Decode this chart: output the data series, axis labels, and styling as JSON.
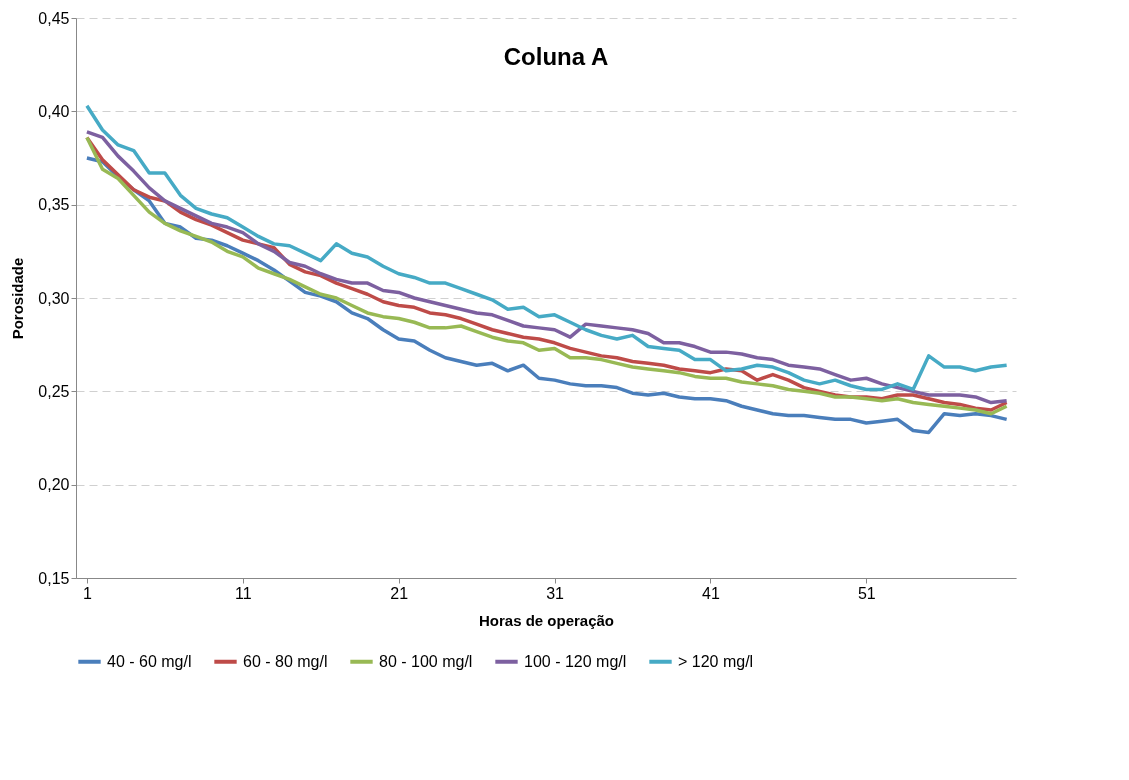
{
  "chart_data": {
    "type": "line",
    "title": "Coluna A",
    "xlabel": "Horas de operação",
    "ylabel": "Porosidade",
    "x": [
      1,
      2,
      3,
      4,
      5,
      6,
      7,
      8,
      9,
      10,
      11,
      12,
      13,
      14,
      15,
      16,
      17,
      18,
      19,
      20,
      21,
      22,
      23,
      24,
      25,
      26,
      27,
      28,
      29,
      30,
      31,
      32,
      33,
      34,
      35,
      36,
      37,
      38,
      39,
      40,
      41,
      42,
      43,
      44,
      45,
      46,
      47,
      48,
      49,
      50,
      51,
      52,
      53,
      54,
      55,
      56,
      57,
      58,
      59,
      60
    ],
    "xlim": [
      0.3,
      60.6
    ],
    "xticks": [
      1,
      11,
      21,
      31,
      41,
      51
    ],
    "ylim": [
      0.15,
      0.45
    ],
    "yticks": [
      {
        "value": 0.15,
        "label": "0,15"
      },
      {
        "value": 0.2,
        "label": "0,20"
      },
      {
        "value": 0.25,
        "label": "0,25"
      },
      {
        "value": 0.3,
        "label": "0,30"
      },
      {
        "value": 0.35,
        "label": "0,35"
      },
      {
        "value": 0.4,
        "label": "0,40"
      },
      {
        "value": 0.45,
        "label": "0,45"
      }
    ],
    "grid": "y",
    "legend": "bottom",
    "series": [
      {
        "name": "40 - 60 mg/l",
        "color": "#4a7ebb",
        "values": [
          0.375,
          0.373,
          0.365,
          0.358,
          0.352,
          0.34,
          0.338,
          0.332,
          0.331,
          0.328,
          0.324,
          0.32,
          0.315,
          0.309,
          0.303,
          0.301,
          0.298,
          0.292,
          0.289,
          0.283,
          0.278,
          0.277,
          0.272,
          0.268,
          0.266,
          0.264,
          0.265,
          0.261,
          0.264,
          0.257,
          0.256,
          0.254,
          0.253,
          0.253,
          0.252,
          0.249,
          0.248,
          0.249,
          0.247,
          0.246,
          0.246,
          0.245,
          0.242,
          0.24,
          0.238,
          0.237,
          0.237,
          0.236,
          0.235,
          0.235,
          0.233,
          0.234,
          0.235,
          0.229,
          0.228,
          0.238,
          0.237,
          0.238,
          0.237,
          0.235
        ]
      },
      {
        "name": "60 - 80 mg/l",
        "color": "#be4b48",
        "values": [
          0.386,
          0.374,
          0.366,
          0.358,
          0.354,
          0.352,
          0.346,
          0.342,
          0.339,
          0.335,
          0.331,
          0.329,
          0.327,
          0.318,
          0.314,
          0.312,
          0.308,
          0.305,
          0.302,
          0.298,
          0.296,
          0.295,
          0.292,
          0.291,
          0.289,
          0.286,
          0.283,
          0.281,
          0.279,
          0.278,
          0.276,
          0.273,
          0.271,
          0.269,
          0.268,
          0.266,
          0.265,
          0.264,
          0.262,
          0.261,
          0.26,
          0.262,
          0.261,
          0.256,
          0.259,
          0.256,
          0.252,
          0.25,
          0.248,
          0.247,
          0.247,
          0.246,
          0.248,
          0.248,
          0.246,
          0.244,
          0.243,
          0.241,
          0.24,
          0.244
        ]
      },
      {
        "name": "80 - 100 mg/l",
        "color": "#98b954",
        "values": [
          0.386,
          0.369,
          0.364,
          0.355,
          0.346,
          0.34,
          0.336,
          0.333,
          0.33,
          0.325,
          0.322,
          0.316,
          0.313,
          0.31,
          0.306,
          0.302,
          0.3,
          0.296,
          0.292,
          0.29,
          0.289,
          0.287,
          0.284,
          0.284,
          0.285,
          0.282,
          0.279,
          0.277,
          0.276,
          0.272,
          0.273,
          0.268,
          0.268,
          0.267,
          0.265,
          0.263,
          0.262,
          0.261,
          0.26,
          0.258,
          0.257,
          0.257,
          0.255,
          0.254,
          0.253,
          0.251,
          0.25,
          0.249,
          0.247,
          0.247,
          0.246,
          0.245,
          0.246,
          0.244,
          0.243,
          0.242,
          0.241,
          0.24,
          0.238,
          0.242
        ]
      },
      {
        "name": "100 - 120 mg/l",
        "color": "#7d60a0",
        "values": [
          0.389,
          0.386,
          0.376,
          0.368,
          0.359,
          0.352,
          0.348,
          0.344,
          0.34,
          0.338,
          0.335,
          0.329,
          0.325,
          0.319,
          0.317,
          0.313,
          0.31,
          0.308,
          0.308,
          0.304,
          0.303,
          0.3,
          0.298,
          0.296,
          0.294,
          0.292,
          0.291,
          0.288,
          0.285,
          0.284,
          0.283,
          0.279,
          0.286,
          0.285,
          0.284,
          0.283,
          0.281,
          0.276,
          0.276,
          0.274,
          0.271,
          0.271,
          0.27,
          0.268,
          0.267,
          0.264,
          0.263,
          0.262,
          0.259,
          0.256,
          0.257,
          0.254,
          0.252,
          0.25,
          0.248,
          0.248,
          0.248,
          0.247,
          0.244,
          0.245
        ]
      },
      {
        "name": "> 120 mg/l",
        "color": "#46aac5",
        "values": [
          0.403,
          0.39,
          0.382,
          0.379,
          0.367,
          0.367,
          0.355,
          0.348,
          0.345,
          0.343,
          0.338,
          0.333,
          0.329,
          0.328,
          0.324,
          0.32,
          0.329,
          0.324,
          0.322,
          0.317,
          0.313,
          0.311,
          0.308,
          0.308,
          0.305,
          0.302,
          0.299,
          0.294,
          0.295,
          0.29,
          0.291,
          0.287,
          0.283,
          0.28,
          0.278,
          0.28,
          0.274,
          0.273,
          0.272,
          0.267,
          0.267,
          0.261,
          0.262,
          0.264,
          0.263,
          0.26,
          0.256,
          0.254,
          0.256,
          0.253,
          0.251,
          0.251,
          0.254,
          0.251,
          0.269,
          0.263,
          0.263,
          0.261,
          0.263,
          0.264
        ]
      }
    ]
  }
}
